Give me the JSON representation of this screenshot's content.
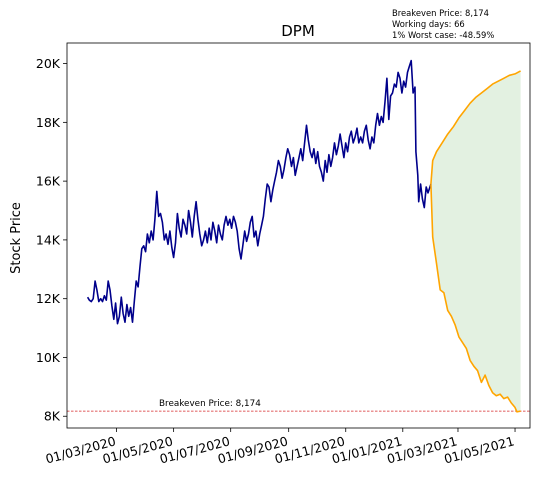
{
  "chart_data": {
    "type": "line",
    "title": "DPM",
    "xlabel": "",
    "ylabel": "Stock Price",
    "annotations": {
      "top_right": [
        "Breakeven Price: 8,174",
        "Working days: 66",
        "1% Worst case: -48.59%"
      ],
      "breakeven_label": "Breakeven Price: 8,174"
    },
    "breakeven": 8174,
    "ylim": [
      7600,
      20700
    ],
    "y_ticks": [
      {
        "value": 8000,
        "label": "8K"
      },
      {
        "value": 10000,
        "label": "10K"
      },
      {
        "value": 12000,
        "label": "12K"
      },
      {
        "value": 14000,
        "label": "14K"
      },
      {
        "value": 16000,
        "label": "16K"
      },
      {
        "value": 18000,
        "label": "18K"
      },
      {
        "value": 20000,
        "label": "20K"
      }
    ],
    "xlim": [
      "2020-01-08",
      "2021-05-17"
    ],
    "x_ticks": [
      {
        "value": "2020-03-01",
        "label": "01/03/2020"
      },
      {
        "value": "2020-05-01",
        "label": "01/05/2020"
      },
      {
        "value": "2020-07-01",
        "label": "01/07/2020"
      },
      {
        "value": "2020-09-01",
        "label": "01/09/2020"
      },
      {
        "value": "2020-11-01",
        "label": "01/11/2020"
      },
      {
        "value": "2021-01-01",
        "label": "01/01/2021"
      },
      {
        "value": "2021-03-01",
        "label": "01/03/2021"
      },
      {
        "value": "2021-05-01",
        "label": "01/05/2021"
      }
    ],
    "colors": {
      "historical": "#00008b",
      "projection": "#ffa500",
      "fill": "#e3f1e1",
      "breakeven_line": "#d62728"
    },
    "series": [
      {
        "key": "historical",
        "points": [
          [
            "2020-01-30",
            12050
          ],
          [
            "2020-02-01",
            11950
          ],
          [
            "2020-02-03",
            11900
          ],
          [
            "2020-02-05",
            12000
          ],
          [
            "2020-02-07",
            12600
          ],
          [
            "2020-02-09",
            12300
          ],
          [
            "2020-02-11",
            11900
          ],
          [
            "2020-02-13",
            12000
          ],
          [
            "2020-02-15",
            11900
          ],
          [
            "2020-02-17",
            12100
          ],
          [
            "2020-02-19",
            11950
          ],
          [
            "2020-02-21",
            12600
          ],
          [
            "2020-02-23",
            12300
          ],
          [
            "2020-02-25",
            11750
          ],
          [
            "2020-02-27",
            11300
          ],
          [
            "2020-02-29",
            11850
          ],
          [
            "2020-03-02",
            11150
          ],
          [
            "2020-03-04",
            11400
          ],
          [
            "2020-03-06",
            12050
          ],
          [
            "2020-03-08",
            11500
          ],
          [
            "2020-03-10",
            11200
          ],
          [
            "2020-03-12",
            11800
          ],
          [
            "2020-03-14",
            11400
          ],
          [
            "2020-03-16",
            11700
          ],
          [
            "2020-03-18",
            11200
          ],
          [
            "2020-03-20",
            11900
          ],
          [
            "2020-03-22",
            12600
          ],
          [
            "2020-03-24",
            12400
          ],
          [
            "2020-03-26",
            13100
          ],
          [
            "2020-03-28",
            13700
          ],
          [
            "2020-03-30",
            13800
          ],
          [
            "2020-04-01",
            13600
          ],
          [
            "2020-04-03",
            14200
          ],
          [
            "2020-04-05",
            13900
          ],
          [
            "2020-04-07",
            14300
          ],
          [
            "2020-04-09",
            14000
          ],
          [
            "2020-04-11",
            14700
          ],
          [
            "2020-04-13",
            15650
          ],
          [
            "2020-04-15",
            14800
          ],
          [
            "2020-04-17",
            14900
          ],
          [
            "2020-04-19",
            14600
          ],
          [
            "2020-04-21",
            14000
          ],
          [
            "2020-04-23",
            14200
          ],
          [
            "2020-04-25",
            13850
          ],
          [
            "2020-04-27",
            14300
          ],
          [
            "2020-04-29",
            13750
          ],
          [
            "2020-05-01",
            13400
          ],
          [
            "2020-05-03",
            13900
          ],
          [
            "2020-05-05",
            14900
          ],
          [
            "2020-05-07",
            14400
          ],
          [
            "2020-05-09",
            14100
          ],
          [
            "2020-05-11",
            14700
          ],
          [
            "2020-05-13",
            14500
          ],
          [
            "2020-05-15",
            14200
          ],
          [
            "2020-05-17",
            15000
          ],
          [
            "2020-05-19",
            14600
          ],
          [
            "2020-05-21",
            14100
          ],
          [
            "2020-05-23",
            14800
          ],
          [
            "2020-05-25",
            15300
          ],
          [
            "2020-05-27",
            14700
          ],
          [
            "2020-05-29",
            14200
          ],
          [
            "2020-05-31",
            13800
          ],
          [
            "2020-06-02",
            14000
          ],
          [
            "2020-06-04",
            14300
          ],
          [
            "2020-06-06",
            13900
          ],
          [
            "2020-06-08",
            14400
          ],
          [
            "2020-06-10",
            14000
          ],
          [
            "2020-06-12",
            14600
          ],
          [
            "2020-06-14",
            14300
          ],
          [
            "2020-06-16",
            13900
          ],
          [
            "2020-06-18",
            14500
          ],
          [
            "2020-06-20",
            14200
          ],
          [
            "2020-06-22",
            14000
          ],
          [
            "2020-06-24",
            14500
          ],
          [
            "2020-06-26",
            14800
          ],
          [
            "2020-06-28",
            14500
          ],
          [
            "2020-06-30",
            14700
          ],
          [
            "2020-07-02",
            14400
          ],
          [
            "2020-07-04",
            14800
          ],
          [
            "2020-07-06",
            14600
          ],
          [
            "2020-07-08",
            14300
          ],
          [
            "2020-07-10",
            13700
          ],
          [
            "2020-07-12",
            13350
          ],
          [
            "2020-07-14",
            13800
          ],
          [
            "2020-07-16",
            14300
          ],
          [
            "2020-07-18",
            13950
          ],
          [
            "2020-07-20",
            14200
          ],
          [
            "2020-07-22",
            14600
          ],
          [
            "2020-07-24",
            14800
          ],
          [
            "2020-07-26",
            14100
          ],
          [
            "2020-07-28",
            14300
          ],
          [
            "2020-07-30",
            13800
          ],
          [
            "2020-08-01",
            14200
          ],
          [
            "2020-08-03",
            14500
          ],
          [
            "2020-08-05",
            14800
          ],
          [
            "2020-08-07",
            15400
          ],
          [
            "2020-08-09",
            15900
          ],
          [
            "2020-08-11",
            15800
          ],
          [
            "2020-08-13",
            15300
          ],
          [
            "2020-08-15",
            15700
          ],
          [
            "2020-08-17",
            16000
          ],
          [
            "2020-08-19",
            16300
          ],
          [
            "2020-08-21",
            16700
          ],
          [
            "2020-08-23",
            16500
          ],
          [
            "2020-08-25",
            16100
          ],
          [
            "2020-08-27",
            16400
          ],
          [
            "2020-08-29",
            16800
          ],
          [
            "2020-08-31",
            17100
          ],
          [
            "2020-09-02",
            16900
          ],
          [
            "2020-09-04",
            16500
          ],
          [
            "2020-09-06",
            16800
          ],
          [
            "2020-09-08",
            16200
          ],
          [
            "2020-09-10",
            16500
          ],
          [
            "2020-09-12",
            16800
          ],
          [
            "2020-09-14",
            17100
          ],
          [
            "2020-09-16",
            16700
          ],
          [
            "2020-09-18",
            17300
          ],
          [
            "2020-09-20",
            17900
          ],
          [
            "2020-09-22",
            17400
          ],
          [
            "2020-09-24",
            17000
          ],
          [
            "2020-09-26",
            16800
          ],
          [
            "2020-09-28",
            17100
          ],
          [
            "2020-09-30",
            16600
          ],
          [
            "2020-10-02",
            17000
          ],
          [
            "2020-10-04",
            16500
          ],
          [
            "2020-10-06",
            16300
          ],
          [
            "2020-10-08",
            16000
          ],
          [
            "2020-10-10",
            16700
          ],
          [
            "2020-10-12",
            16300
          ],
          [
            "2020-10-14",
            16900
          ],
          [
            "2020-10-16",
            16500
          ],
          [
            "2020-10-18",
            16800
          ],
          [
            "2020-10-20",
            17300
          ],
          [
            "2020-10-22",
            16900
          ],
          [
            "2020-10-24",
            17200
          ],
          [
            "2020-10-26",
            17600
          ],
          [
            "2020-10-28",
            17200
          ],
          [
            "2020-10-30",
            16800
          ],
          [
            "2020-11-01",
            17300
          ],
          [
            "2020-11-03",
            17000
          ],
          [
            "2020-11-05",
            17500
          ],
          [
            "2020-11-07",
            17700
          ],
          [
            "2020-11-09",
            17300
          ],
          [
            "2020-11-11",
            17500
          ],
          [
            "2020-11-13",
            17800
          ],
          [
            "2020-11-15",
            17300
          ],
          [
            "2020-11-17",
            17500
          ],
          [
            "2020-11-19",
            17300
          ],
          [
            "2020-11-21",
            17700
          ],
          [
            "2020-11-23",
            17900
          ],
          [
            "2020-11-25",
            17400
          ],
          [
            "2020-11-27",
            17100
          ],
          [
            "2020-11-29",
            17500
          ],
          [
            "2020-12-01",
            17300
          ],
          [
            "2020-12-03",
            17900
          ],
          [
            "2020-12-05",
            18300
          ],
          [
            "2020-12-07",
            17900
          ],
          [
            "2020-12-09",
            18200
          ],
          [
            "2020-12-11",
            18000
          ],
          [
            "2020-12-13",
            18700
          ],
          [
            "2020-12-15",
            19500
          ],
          [
            "2020-12-17",
            18100
          ],
          [
            "2020-12-19",
            18900
          ],
          [
            "2020-12-21",
            19000
          ],
          [
            "2020-12-23",
            19300
          ],
          [
            "2020-12-25",
            19200
          ],
          [
            "2020-12-27",
            19700
          ],
          [
            "2020-12-29",
            19500
          ],
          [
            "2020-12-31",
            19000
          ],
          [
            "2021-01-02",
            19400
          ],
          [
            "2021-01-04",
            19200
          ],
          [
            "2021-01-06",
            19700
          ],
          [
            "2021-01-08",
            19900
          ],
          [
            "2021-01-10",
            20100
          ],
          [
            "2021-01-12",
            19000
          ],
          [
            "2021-01-14",
            19200
          ],
          [
            "2021-01-15",
            17000
          ],
          [
            "2021-01-17",
            16200
          ],
          [
            "2021-01-18",
            15300
          ],
          [
            "2021-01-20",
            15900
          ],
          [
            "2021-01-22",
            15400
          ],
          [
            "2021-01-24",
            15100
          ],
          [
            "2021-01-26",
            15800
          ],
          [
            "2021-01-28",
            15600
          ],
          [
            "2021-01-31",
            15900
          ]
        ]
      },
      {
        "key": "upper",
        "points": [
          [
            "2021-01-31",
            15900
          ],
          [
            "2021-02-02",
            16700
          ],
          [
            "2021-02-06",
            17000
          ],
          [
            "2021-02-12",
            17300
          ],
          [
            "2021-02-18",
            17600
          ],
          [
            "2021-02-24",
            17850
          ],
          [
            "2021-03-02",
            18150
          ],
          [
            "2021-03-08",
            18400
          ],
          [
            "2021-03-14",
            18650
          ],
          [
            "2021-03-20",
            18850
          ],
          [
            "2021-03-26",
            19000
          ],
          [
            "2021-04-01",
            19150
          ],
          [
            "2021-04-07",
            19300
          ],
          [
            "2021-04-13",
            19400
          ],
          [
            "2021-04-19",
            19500
          ],
          [
            "2021-04-25",
            19600
          ],
          [
            "2021-05-01",
            19650
          ],
          [
            "2021-05-07",
            19750
          ]
        ]
      },
      {
        "key": "lower",
        "points": [
          [
            "2021-01-31",
            15900
          ],
          [
            "2021-02-02",
            14100
          ],
          [
            "2021-02-06",
            13200
          ],
          [
            "2021-02-10",
            12300
          ],
          [
            "2021-02-14",
            12200
          ],
          [
            "2021-02-18",
            11600
          ],
          [
            "2021-02-22",
            11400
          ],
          [
            "2021-02-26",
            11100
          ],
          [
            "2021-03-02",
            10700
          ],
          [
            "2021-03-06",
            10500
          ],
          [
            "2021-03-10",
            10300
          ],
          [
            "2021-03-14",
            9900
          ],
          [
            "2021-03-18",
            9700
          ],
          [
            "2021-03-22",
            9550
          ],
          [
            "2021-03-26",
            9150
          ],
          [
            "2021-03-30",
            9400
          ],
          [
            "2021-04-03",
            9050
          ],
          [
            "2021-04-07",
            8800
          ],
          [
            "2021-04-11",
            8700
          ],
          [
            "2021-04-15",
            8750
          ],
          [
            "2021-04-19",
            8600
          ],
          [
            "2021-04-23",
            8650
          ],
          [
            "2021-04-27",
            8450
          ],
          [
            "2021-05-01",
            8300
          ],
          [
            "2021-05-03",
            8150
          ],
          [
            "2021-05-07",
            8174
          ]
        ]
      }
    ]
  }
}
